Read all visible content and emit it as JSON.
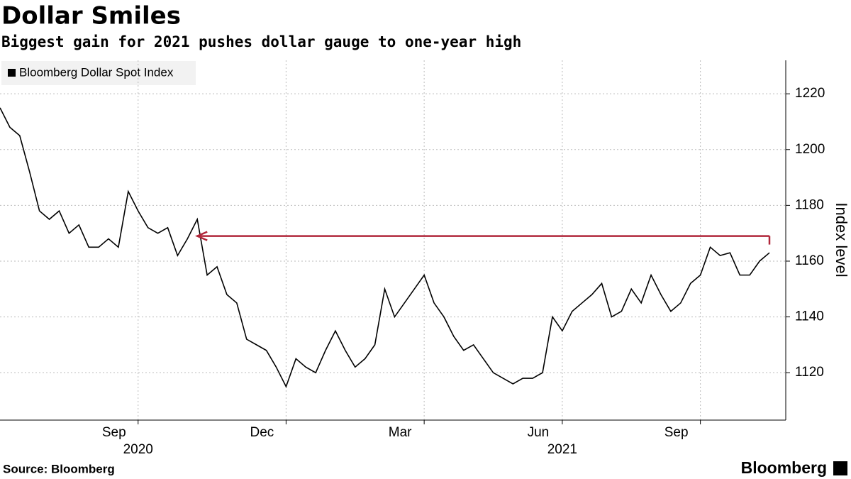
{
  "chart_data": {
    "type": "line",
    "title": "Dollar Smiles",
    "subtitle": "Biggest gain for 2021 pushes dollar gauge to one-year high",
    "y_axis_label": "Index level",
    "source": "Source: Bloomberg",
    "brand": "Bloomberg",
    "categories": [
      null,
      null,
      null,
      null,
      null,
      null,
      null,
      null,
      null,
      null,
      null,
      null,
      null,
      null,
      "Sep",
      null,
      null,
      null,
      null,
      null,
      null,
      null,
      null,
      null,
      null,
      null,
      null,
      null,
      null,
      "Dec",
      null,
      null,
      null,
      null,
      null,
      null,
      null,
      null,
      null,
      null,
      null,
      null,
      null,
      "Mar",
      null,
      null,
      null,
      null,
      null,
      null,
      null,
      null,
      null,
      null,
      null,
      null,
      null,
      "Jun",
      null,
      null,
      null,
      null,
      null,
      null,
      null,
      null,
      null,
      null,
      null,
      null,
      null,
      "Sep",
      null,
      null,
      null,
      null,
      null,
      null,
      null
    ],
    "year_labels": [
      {
        "label": "2020",
        "category": 14
      },
      {
        "label": "2021",
        "category": 57
      }
    ],
    "series": [
      {
        "name": "Bloomberg Dollar Spot Index",
        "color": "#000000",
        "values": [
          1215,
          1208,
          1205,
          1192,
          1178,
          1175,
          1178,
          1170,
          1173,
          1165,
          1165,
          1168,
          1165,
          1185,
          1178,
          1172,
          1170,
          1172,
          1162,
          1168,
          1175,
          1155,
          1158,
          1148,
          1145,
          1132,
          1130,
          1128,
          1122,
          1115,
          1125,
          1122,
          1120,
          1128,
          1135,
          1128,
          1122,
          1125,
          1130,
          1150,
          1140,
          1145,
          1150,
          1155,
          1145,
          1140,
          1133,
          1128,
          1130,
          1125,
          1120,
          1118,
          1116,
          1118,
          1118,
          1120,
          1140,
          1135,
          1142,
          1145,
          1148,
          1152,
          1140,
          1142,
          1150,
          1145,
          1155,
          1148,
          1142,
          1145,
          1152,
          1155,
          1165,
          1162,
          1163,
          1155,
          1155,
          1160,
          1163
        ]
      }
    ],
    "reference_line": {
      "value": 1169,
      "from_category": 20,
      "color": "#b0263a"
    },
    "ylim": [
      1103,
      1232
    ],
    "yticks": [
      1120,
      1140,
      1160,
      1180,
      1200,
      1220
    ],
    "grid": true
  }
}
